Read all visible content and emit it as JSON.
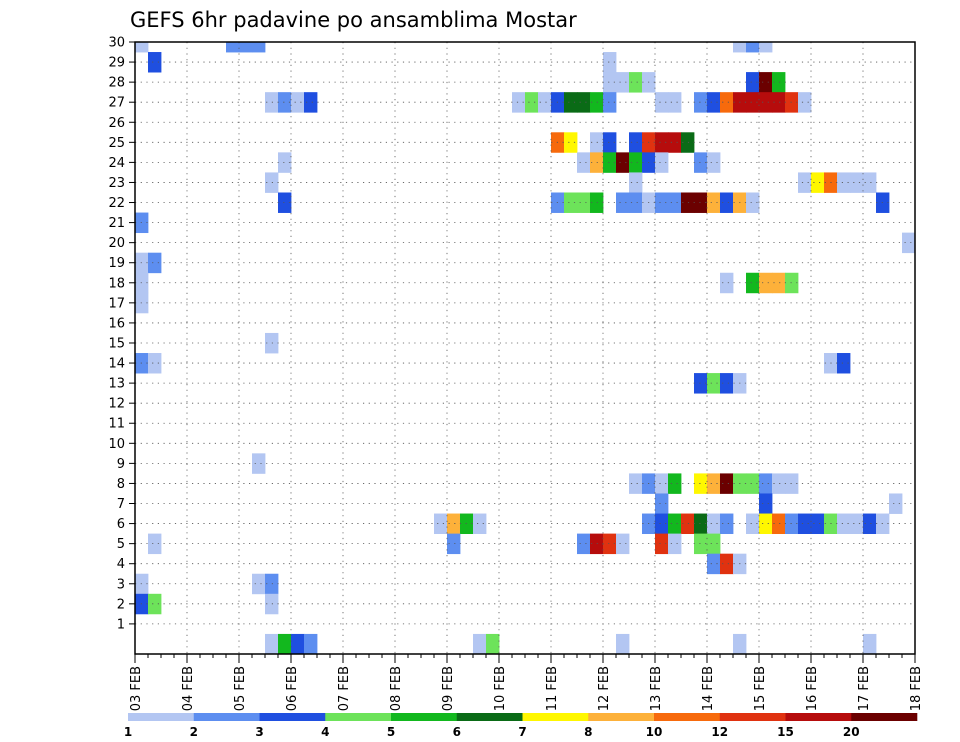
{
  "chart_data": {
    "type": "heatmap",
    "title": "GEFS 6hr padavine po ansamblima Mostar",
    "xlabel": "",
    "ylabel": "",
    "x_ticks": [
      "03 FEB",
      "04 FEB",
      "05 FEB",
      "06 FEB",
      "07 FEB",
      "08 FEB",
      "09 FEB",
      "10 FEB",
      "11 FEB",
      "12 FEB",
      "13 FEB",
      "14 FEB",
      "15 FEB",
      "16 FEB",
      "17 FEB",
      "18 FEB"
    ],
    "y_ticks": [
      "1",
      "2",
      "3",
      "4",
      "5",
      "6",
      "7",
      "8",
      "9",
      "10",
      "11",
      "12",
      "13",
      "14",
      "15",
      "16",
      "17",
      "18",
      "19",
      "20",
      "21",
      "22",
      "23",
      "24",
      "25",
      "26",
      "27",
      "28",
      "29",
      "30"
    ],
    "x_range": [
      "03 FEB",
      "18 FEB"
    ],
    "y_range": [
      0,
      30
    ],
    "grid": true,
    "colorbar": {
      "labels": [
        "1",
        "2",
        "3",
        "4",
        "5",
        "6",
        "7",
        "8",
        "10",
        "12",
        "15",
        "20"
      ],
      "colors": [
        "#b3c6f2",
        "#5d8ef0",
        "#1f4fe0",
        "#6de35a",
        "#12b81e",
        "#0a6b16",
        "#fff700",
        "#fdb13a",
        "#f76a0c",
        "#e03210",
        "#b60c0c",
        "#6b0000"
      ]
    },
    "cells_note": "each cell = [time step index (6h steps from 03 FEB 00z), ensemble member, color class index 0-11]",
    "cells": [
      [
        0,
        30,
        0
      ],
      [
        7,
        30,
        1
      ],
      [
        8,
        30,
        1
      ],
      [
        9,
        30,
        1
      ],
      [
        46,
        30,
        0
      ],
      [
        47,
        30,
        1
      ],
      [
        48,
        30,
        0
      ],
      [
        1,
        29,
        2
      ],
      [
        36,
        29,
        0
      ],
      [
        36,
        28,
        0
      ],
      [
        37,
        28,
        0
      ],
      [
        38,
        28,
        3
      ],
      [
        39,
        28,
        0
      ],
      [
        47,
        28,
        2
      ],
      [
        48,
        28,
        11
      ],
      [
        49,
        28,
        4
      ],
      [
        10,
        27,
        0
      ],
      [
        11,
        27,
        1
      ],
      [
        12,
        27,
        0
      ],
      [
        13,
        27,
        2
      ],
      [
        29,
        27,
        0
      ],
      [
        30,
        27,
        3
      ],
      [
        31,
        27,
        0
      ],
      [
        32,
        27,
        2
      ],
      [
        33,
        27,
        5
      ],
      [
        34,
        27,
        5
      ],
      [
        35,
        27,
        4
      ],
      [
        36,
        27,
        1
      ],
      [
        40,
        27,
        0
      ],
      [
        41,
        27,
        0
      ],
      [
        43,
        27,
        1
      ],
      [
        44,
        27,
        2
      ],
      [
        45,
        27,
        8
      ],
      [
        46,
        27,
        10
      ],
      [
        47,
        27,
        10
      ],
      [
        48,
        27,
        10
      ],
      [
        49,
        27,
        10
      ],
      [
        50,
        27,
        9
      ],
      [
        51,
        27,
        0
      ],
      [
        32,
        25,
        8
      ],
      [
        33,
        25,
        6
      ],
      [
        35,
        25,
        0
      ],
      [
        36,
        25,
        2
      ],
      [
        38,
        25,
        2
      ],
      [
        39,
        25,
        9
      ],
      [
        40,
        25,
        10
      ],
      [
        41,
        25,
        10
      ],
      [
        42,
        25,
        5
      ],
      [
        34,
        24,
        0
      ],
      [
        35,
        24,
        7
      ],
      [
        36,
        24,
        4
      ],
      [
        37,
        24,
        11
      ],
      [
        38,
        24,
        4
      ],
      [
        39,
        24,
        2
      ],
      [
        40,
        24,
        0
      ],
      [
        43,
        24,
        1
      ],
      [
        44,
        24,
        0
      ],
      [
        11,
        24,
        0
      ],
      [
        10,
        23,
        0
      ],
      [
        38,
        23,
        0
      ],
      [
        51,
        23,
        0
      ],
      [
        52,
        23,
        6
      ],
      [
        53,
        23,
        8
      ],
      [
        54,
        23,
        0
      ],
      [
        55,
        23,
        0
      ],
      [
        56,
        23,
        0
      ],
      [
        11,
        22,
        2
      ],
      [
        32,
        22,
        1
      ],
      [
        33,
        22,
        3
      ],
      [
        34,
        22,
        3
      ],
      [
        35,
        22,
        4
      ],
      [
        37,
        22,
        1
      ],
      [
        38,
        22,
        1
      ],
      [
        39,
        22,
        0
      ],
      [
        40,
        22,
        1
      ],
      [
        41,
        22,
        1
      ],
      [
        42,
        22,
        11
      ],
      [
        43,
        22,
        11
      ],
      [
        44,
        22,
        7
      ],
      [
        45,
        22,
        2
      ],
      [
        46,
        22,
        7
      ],
      [
        47,
        22,
        0
      ],
      [
        57,
        22,
        2
      ],
      [
        0,
        21,
        1
      ],
      [
        59,
        20,
        0
      ],
      [
        0,
        19,
        0
      ],
      [
        1,
        19,
        1
      ],
      [
        0,
        18,
        0
      ],
      [
        45,
        18,
        0
      ],
      [
        47,
        18,
        4
      ],
      [
        48,
        18,
        7
      ],
      [
        49,
        18,
        7
      ],
      [
        50,
        18,
        3
      ],
      [
        0,
        17,
        0
      ],
      [
        10,
        15,
        0
      ],
      [
        0,
        14,
        1
      ],
      [
        1,
        14,
        0
      ],
      [
        53,
        14,
        0
      ],
      [
        54,
        14,
        2
      ],
      [
        43,
        13,
        2
      ],
      [
        44,
        13,
        3
      ],
      [
        45,
        13,
        2
      ],
      [
        46,
        13,
        0
      ],
      [
        9,
        9,
        0
      ],
      [
        38,
        8,
        0
      ],
      [
        39,
        8,
        1
      ],
      [
        40,
        8,
        0
      ],
      [
        41,
        8,
        4
      ],
      [
        43,
        8,
        6
      ],
      [
        44,
        8,
        7
      ],
      [
        45,
        8,
        11
      ],
      [
        46,
        8,
        3
      ],
      [
        47,
        8,
        3
      ],
      [
        48,
        8,
        1
      ],
      [
        49,
        8,
        0
      ],
      [
        50,
        8,
        0
      ],
      [
        40,
        7,
        1
      ],
      [
        48,
        7,
        2
      ],
      [
        58,
        7,
        0
      ],
      [
        23,
        6,
        0
      ],
      [
        24,
        6,
        7
      ],
      [
        25,
        6,
        4
      ],
      [
        26,
        6,
        0
      ],
      [
        39,
        6,
        1
      ],
      [
        40,
        6,
        2
      ],
      [
        41,
        6,
        4
      ],
      [
        42,
        6,
        9
      ],
      [
        43,
        6,
        5
      ],
      [
        44,
        6,
        0
      ],
      [
        45,
        6,
        1
      ],
      [
        47,
        6,
        0
      ],
      [
        48,
        6,
        6
      ],
      [
        49,
        6,
        8
      ],
      [
        50,
        6,
        1
      ],
      [
        51,
        6,
        2
      ],
      [
        52,
        6,
        2
      ],
      [
        53,
        6,
        3
      ],
      [
        54,
        6,
        0
      ],
      [
        55,
        6,
        0
      ],
      [
        56,
        6,
        2
      ],
      [
        57,
        6,
        0
      ],
      [
        1,
        5,
        0
      ],
      [
        24,
        5,
        1
      ],
      [
        34,
        5,
        1
      ],
      [
        35,
        5,
        10
      ],
      [
        36,
        5,
        9
      ],
      [
        37,
        5,
        0
      ],
      [
        40,
        5,
        9
      ],
      [
        41,
        5,
        0
      ],
      [
        43,
        5,
        3
      ],
      [
        44,
        5,
        3
      ],
      [
        44,
        4,
        1
      ],
      [
        45,
        4,
        9
      ],
      [
        46,
        4,
        0
      ],
      [
        0,
        3,
        0
      ],
      [
        9,
        3,
        0
      ],
      [
        10,
        3,
        1
      ],
      [
        0,
        2,
        2
      ],
      [
        1,
        2,
        3
      ],
      [
        10,
        2,
        0
      ],
      [
        10,
        0,
        0
      ],
      [
        11,
        0,
        4
      ],
      [
        12,
        0,
        2
      ],
      [
        13,
        0,
        1
      ],
      [
        26,
        0,
        0
      ],
      [
        27,
        0,
        3
      ],
      [
        37,
        0,
        0
      ],
      [
        46,
        0,
        0
      ],
      [
        56,
        0,
        0
      ]
    ]
  }
}
